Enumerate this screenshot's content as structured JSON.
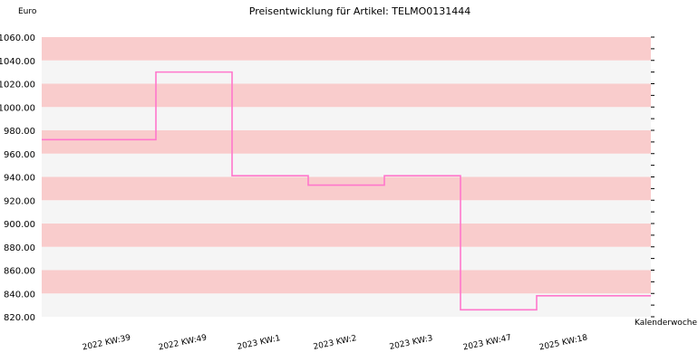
{
  "chart_data": {
    "type": "line",
    "title": "Preisentwicklung für Artikel: TELMO0131444",
    "ylabel": "Euro",
    "xlabel": "Kalenderwoche",
    "ylim": [
      820,
      1060
    ],
    "yticks": [
      "820.00",
      "840.00",
      "860.00",
      "880.00",
      "900.00",
      "920.00",
      "940.00",
      "960.00",
      "980.00",
      "1000.00",
      "1020.00",
      "1040.00",
      "1060.00"
    ],
    "categories": [
      "2022 KW:39",
      "2022 KW:49",
      "2023 KW:1",
      "2023 KW:2",
      "2023 KW:3",
      "2023 KW:47",
      "2025 KW:18"
    ],
    "series": [
      {
        "values": [
          972,
          1030,
          941,
          933,
          941,
          826,
          838
        ]
      }
    ],
    "grid": true,
    "colors": {
      "line": "#ff77cc",
      "band_dark": "#f9cccc",
      "band_light": "#f5f5f5"
    }
  }
}
